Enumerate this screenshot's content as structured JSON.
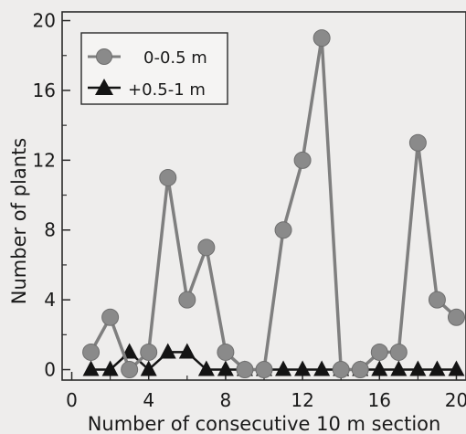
{
  "chart_data": {
    "type": "line",
    "xlabel": "Number of consecutive 10 m section",
    "ylabel": "Number of plants",
    "xlim": [
      -0.5,
      20.5
    ],
    "ylim": [
      -0.6,
      20.5
    ],
    "xticks": [
      0,
      4,
      8,
      12,
      16,
      20
    ],
    "yticks": [
      0,
      4,
      8,
      12,
      16,
      20
    ],
    "grid": false,
    "legend_position": "top-left",
    "series": [
      {
        "name": "0-0.5 m",
        "marker": "circle",
        "color": "#7f7f7f",
        "x": [
          1,
          2,
          3,
          4,
          5,
          6,
          7,
          8,
          9,
          10,
          11,
          12,
          13,
          14,
          15,
          16,
          17,
          18,
          19,
          20
        ],
        "y": [
          1,
          3,
          0,
          1,
          11,
          4,
          7,
          1,
          0,
          0,
          8,
          12,
          19,
          0,
          0,
          1,
          1,
          13,
          4,
          3
        ]
      },
      {
        "name": "+0.5-1 m",
        "marker": "triangle",
        "color": "#141414",
        "x": [
          1,
          2,
          3,
          4,
          5,
          6,
          7,
          8,
          9,
          10,
          11,
          12,
          13,
          14,
          15,
          16,
          17,
          18,
          19,
          20
        ],
        "y": [
          0,
          0,
          1,
          0,
          1,
          1,
          0,
          0,
          0,
          0,
          0,
          0,
          0,
          0,
          0,
          0,
          0,
          0,
          0,
          0
        ]
      }
    ]
  }
}
